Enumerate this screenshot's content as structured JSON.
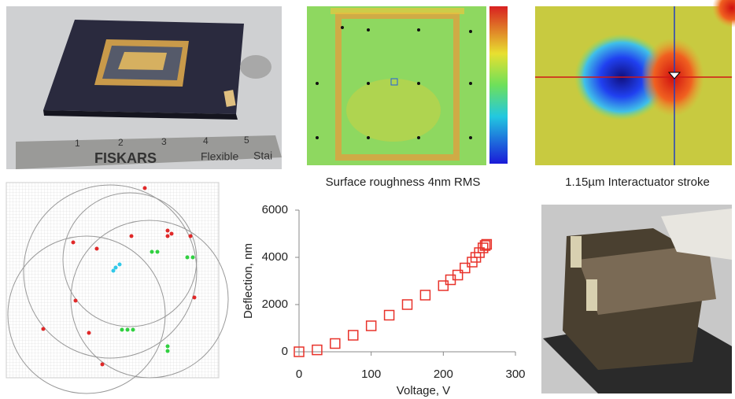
{
  "photo": {
    "brand": "FISKARS",
    "ruler_word": "Flexible",
    "ruler_cut": "Stai",
    "ruler_numbers": [
      "1",
      "2",
      "3",
      "4",
      "5"
    ]
  },
  "captions": {
    "surface": "Surface roughness 4nm RMS",
    "stroke": "1.15µm Interactuator stroke"
  },
  "chart_data": {
    "type": "scatter",
    "x_label": "Voltage, V",
    "y_label": "Deflection, nm",
    "x": [
      0,
      25,
      50,
      75,
      100,
      125,
      150,
      175,
      200,
      210,
      220,
      230,
      240,
      245,
      250,
      255,
      258,
      260
    ],
    "series": [
      {
        "color": "#e8322a",
        "values": [
          0,
          80,
          350,
          700,
          1100,
          1550,
          2000,
          2400,
          2800,
          3050,
          3250,
          3550,
          3800,
          4000,
          4200,
          4400,
          4500,
          4550
        ]
      }
    ],
    "xlim": [
      0,
      300
    ],
    "xticks": [
      0,
      100,
      200,
      300
    ],
    "ylim": [
      0,
      6000
    ],
    "yticks": [
      0,
      2000,
      4000,
      6000
    ]
  }
}
